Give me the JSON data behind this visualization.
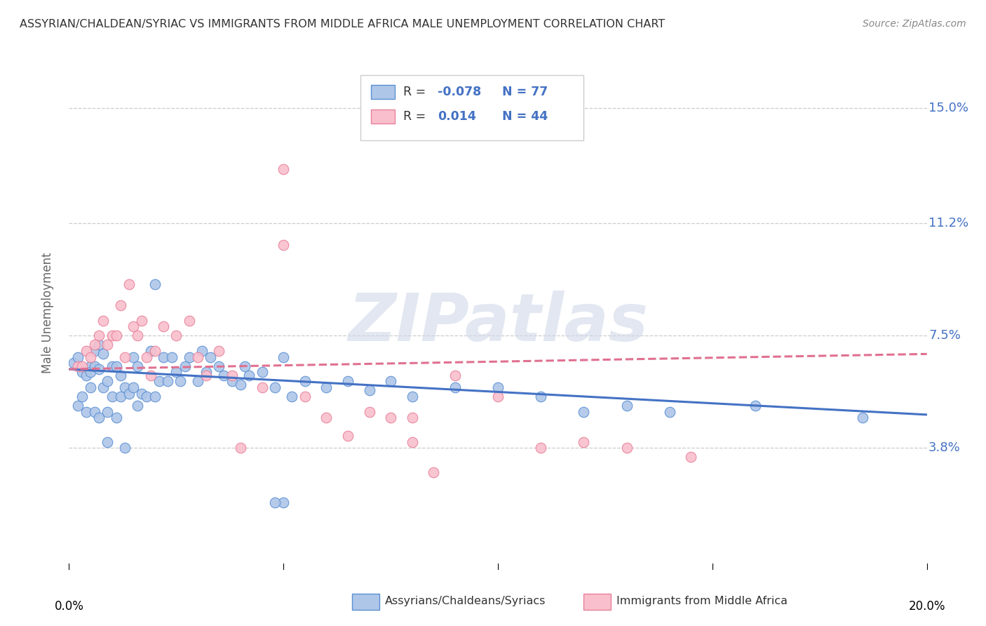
{
  "title": "ASSYRIAN/CHALDEAN/SYRIAC VS IMMIGRANTS FROM MIDDLE AFRICA MALE UNEMPLOYMENT CORRELATION CHART",
  "source": "Source: ZipAtlas.com",
  "ylabel": "Male Unemployment",
  "ytick_labels": [
    "15.0%",
    "11.2%",
    "7.5%",
    "3.8%"
  ],
  "ytick_values": [
    0.15,
    0.112,
    0.075,
    0.038
  ],
  "xmin": 0.0,
  "xmax": 0.2,
  "ymin": 0.0,
  "ymax": 0.165,
  "color_blue_fill": "#aec6e8",
  "color_blue_edge": "#5b8fd4",
  "color_pink_fill": "#f9bfcc",
  "color_pink_edge": "#e8809a",
  "color_blue_line": "#4472c4",
  "color_pink_line": "#e07090",
  "color_grid": "#cccccc",
  "watermark_color": "#d0d8e8",
  "watermark_text": "ZIPatlas",
  "label1": "Assyrians/Chaldeans/Syriacs",
  "label2": "Immigrants from Middle Africa",
  "legend_r1_prefix": "R = ",
  "legend_r1_val": "-0.078",
  "legend_n1": "N = 77",
  "legend_r2_prefix": "R =  ",
  "legend_r2_val": "0.014",
  "legend_n2": "N = 44",
  "blue_scatter_x": [
    0.001,
    0.002,
    0.002,
    0.003,
    0.003,
    0.004,
    0.004,
    0.005,
    0.005,
    0.005,
    0.006,
    0.006,
    0.006,
    0.007,
    0.007,
    0.007,
    0.008,
    0.008,
    0.009,
    0.009,
    0.009,
    0.01,
    0.01,
    0.011,
    0.011,
    0.012,
    0.012,
    0.013,
    0.013,
    0.014,
    0.015,
    0.015,
    0.016,
    0.016,
    0.017,
    0.018,
    0.019,
    0.02,
    0.02,
    0.021,
    0.022,
    0.023,
    0.024,
    0.025,
    0.026,
    0.027,
    0.028,
    0.03,
    0.031,
    0.032,
    0.033,
    0.035,
    0.036,
    0.038,
    0.04,
    0.041,
    0.042,
    0.045,
    0.048,
    0.05,
    0.052,
    0.055,
    0.06,
    0.065,
    0.07,
    0.075,
    0.08,
    0.09,
    0.1,
    0.11,
    0.12,
    0.13,
    0.14,
    0.16,
    0.185,
    0.05,
    0.048
  ],
  "blue_scatter_y": [
    0.066,
    0.068,
    0.052,
    0.063,
    0.055,
    0.062,
    0.05,
    0.065,
    0.058,
    0.063,
    0.065,
    0.07,
    0.05,
    0.072,
    0.064,
    0.048,
    0.069,
    0.058,
    0.06,
    0.05,
    0.04,
    0.055,
    0.065,
    0.065,
    0.048,
    0.055,
    0.062,
    0.058,
    0.038,
    0.056,
    0.058,
    0.068,
    0.052,
    0.065,
    0.056,
    0.055,
    0.07,
    0.055,
    0.092,
    0.06,
    0.068,
    0.06,
    0.068,
    0.063,
    0.06,
    0.065,
    0.068,
    0.06,
    0.07,
    0.063,
    0.068,
    0.065,
    0.062,
    0.06,
    0.059,
    0.065,
    0.062,
    0.063,
    0.058,
    0.068,
    0.055,
    0.06,
    0.058,
    0.06,
    0.057,
    0.06,
    0.055,
    0.058,
    0.058,
    0.055,
    0.05,
    0.052,
    0.05,
    0.052,
    0.048,
    0.02,
    0.02
  ],
  "pink_scatter_x": [
    0.002,
    0.003,
    0.004,
    0.005,
    0.006,
    0.007,
    0.008,
    0.009,
    0.01,
    0.011,
    0.012,
    0.013,
    0.014,
    0.015,
    0.016,
    0.017,
    0.018,
    0.019,
    0.02,
    0.022,
    0.025,
    0.028,
    0.03,
    0.032,
    0.035,
    0.038,
    0.04,
    0.045,
    0.05,
    0.055,
    0.06,
    0.065,
    0.07,
    0.075,
    0.08,
    0.085,
    0.09,
    0.1,
    0.11,
    0.12,
    0.13,
    0.145,
    0.08,
    0.05
  ],
  "pink_scatter_y": [
    0.065,
    0.065,
    0.07,
    0.068,
    0.072,
    0.075,
    0.08,
    0.072,
    0.075,
    0.075,
    0.085,
    0.068,
    0.092,
    0.078,
    0.075,
    0.08,
    0.068,
    0.062,
    0.07,
    0.078,
    0.075,
    0.08,
    0.068,
    0.062,
    0.07,
    0.062,
    0.038,
    0.058,
    0.13,
    0.055,
    0.048,
    0.042,
    0.05,
    0.048,
    0.04,
    0.03,
    0.062,
    0.055,
    0.038,
    0.04,
    0.038,
    0.035,
    0.048,
    0.105
  ],
  "blue_line_x": [
    0.0,
    0.2
  ],
  "blue_line_y": [
    0.064,
    0.049
  ],
  "pink_line_x": [
    0.0,
    0.2
  ],
  "pink_line_y": [
    0.064,
    0.069
  ]
}
